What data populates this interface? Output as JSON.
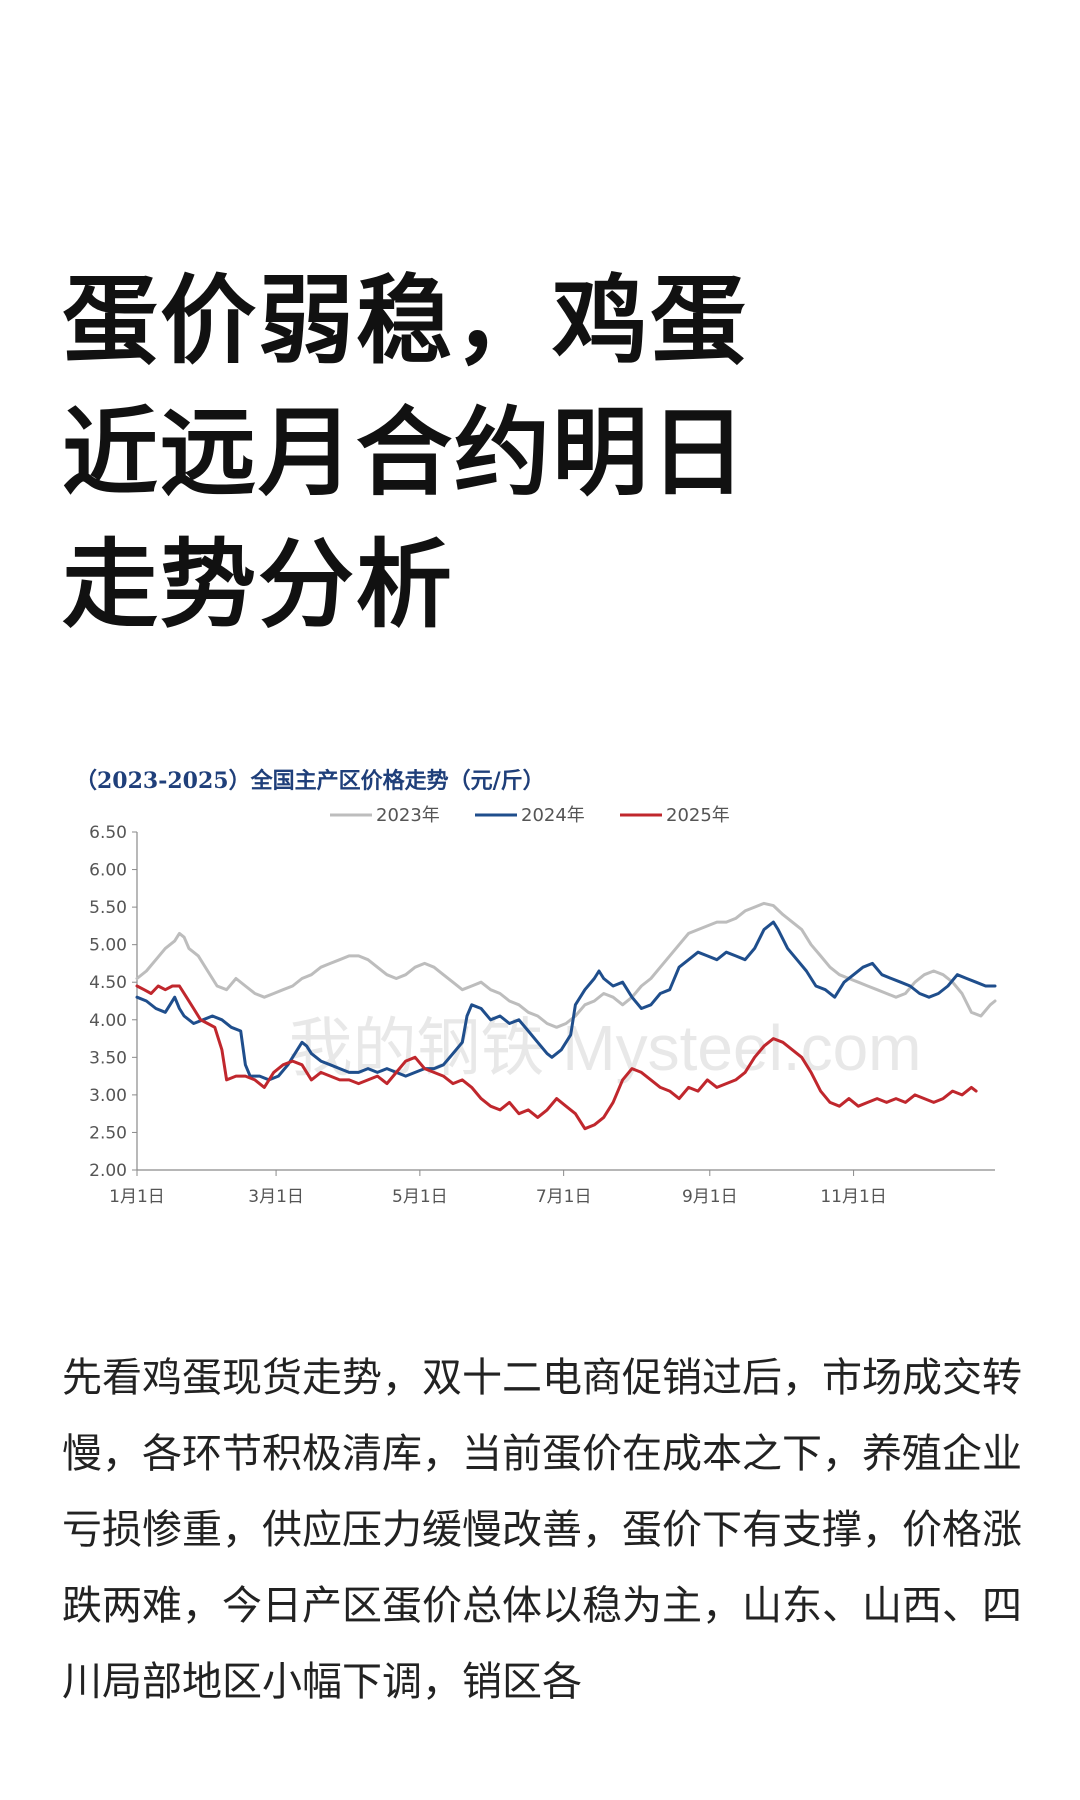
{
  "article": {
    "title": "蛋价弱稳，鸡蛋近远月合约明日走势分析",
    "body": "先看鸡蛋现货走势，双十二电商促销过后，市场成交转慢，各环节积极清库，当前蛋价在成本之下，养殖企业亏损惨重，供应压力缓慢改善，蛋价下有支撑，价格涨跌两难，今日产区蛋价总体以稳为主，山东、山西、四川局部地区小幅下调，销区各"
  },
  "chart_data": {
    "type": "line",
    "title": "（2023-2025）全国主产区价格走势（元/斤）",
    "watermark": "我的钢铁 Mysteel.com",
    "x_ticks": [
      {
        "label": "1月1日",
        "day": 0
      },
      {
        "label": "3月1日",
        "day": 59
      },
      {
        "label": "5月1日",
        "day": 120
      },
      {
        "label": "7月1日",
        "day": 181
      },
      {
        "label": "9月1日",
        "day": 243
      },
      {
        "label": "11月1日",
        "day": 304
      }
    ],
    "x_range_days": [
      0,
      364
    ],
    "y_ticks": [
      "2.00",
      "2.50",
      "3.00",
      "3.50",
      "4.00",
      "4.50",
      "5.00",
      "5.50",
      "6.00",
      "6.50"
    ],
    "ylim": [
      2.0,
      6.5
    ],
    "legend_position": "top-center",
    "grid": false,
    "series": [
      {
        "name": "2023年",
        "color": "#bdbdbd",
        "points": [
          [
            0,
            4.55
          ],
          [
            4,
            4.65
          ],
          [
            8,
            4.8
          ],
          [
            12,
            4.95
          ],
          [
            16,
            5.05
          ],
          [
            18,
            5.15
          ],
          [
            20,
            5.1
          ],
          [
            22,
            4.95
          ],
          [
            26,
            4.85
          ],
          [
            30,
            4.65
          ],
          [
            34,
            4.45
          ],
          [
            38,
            4.4
          ],
          [
            42,
            4.55
          ],
          [
            46,
            4.45
          ],
          [
            50,
            4.35
          ],
          [
            54,
            4.3
          ],
          [
            58,
            4.35
          ],
          [
            62,
            4.4
          ],
          [
            66,
            4.45
          ],
          [
            70,
            4.55
          ],
          [
            74,
            4.6
          ],
          [
            78,
            4.7
          ],
          [
            82,
            4.75
          ],
          [
            86,
            4.8
          ],
          [
            90,
            4.85
          ],
          [
            94,
            4.85
          ],
          [
            98,
            4.8
          ],
          [
            102,
            4.7
          ],
          [
            106,
            4.6
          ],
          [
            110,
            4.55
          ],
          [
            114,
            4.6
          ],
          [
            118,
            4.7
          ],
          [
            122,
            4.75
          ],
          [
            126,
            4.7
          ],
          [
            130,
            4.6
          ],
          [
            134,
            4.5
          ],
          [
            138,
            4.4
          ],
          [
            142,
            4.45
          ],
          [
            146,
            4.5
          ],
          [
            150,
            4.4
          ],
          [
            154,
            4.35
          ],
          [
            158,
            4.25
          ],
          [
            162,
            4.2
          ],
          [
            166,
            4.1
          ],
          [
            170,
            4.05
          ],
          [
            174,
            3.95
          ],
          [
            178,
            3.9
          ],
          [
            182,
            3.95
          ],
          [
            186,
            4.05
          ],
          [
            190,
            4.2
          ],
          [
            194,
            4.25
          ],
          [
            198,
            4.35
          ],
          [
            202,
            4.3
          ],
          [
            206,
            4.2
          ],
          [
            210,
            4.3
          ],
          [
            214,
            4.45
          ],
          [
            218,
            4.55
          ],
          [
            222,
            4.7
          ],
          [
            226,
            4.85
          ],
          [
            230,
            5.0
          ],
          [
            234,
            5.15
          ],
          [
            238,
            5.2
          ],
          [
            242,
            5.25
          ],
          [
            246,
            5.3
          ],
          [
            250,
            5.3
          ],
          [
            254,
            5.35
          ],
          [
            258,
            5.45
          ],
          [
            262,
            5.5
          ],
          [
            266,
            5.55
          ],
          [
            270,
            5.52
          ],
          [
            274,
            5.4
          ],
          [
            278,
            5.3
          ],
          [
            282,
            5.2
          ],
          [
            286,
            5.0
          ],
          [
            290,
            4.85
          ],
          [
            294,
            4.7
          ],
          [
            298,
            4.6
          ],
          [
            302,
            4.55
          ],
          [
            306,
            4.5
          ],
          [
            310,
            4.45
          ],
          [
            314,
            4.4
          ],
          [
            318,
            4.35
          ],
          [
            322,
            4.3
          ],
          [
            326,
            4.35
          ],
          [
            330,
            4.5
          ],
          [
            334,
            4.6
          ],
          [
            338,
            4.65
          ],
          [
            342,
            4.6
          ],
          [
            346,
            4.5
          ],
          [
            350,
            4.35
          ],
          [
            354,
            4.1
          ],
          [
            358,
            4.05
          ],
          [
            362,
            4.2
          ],
          [
            364,
            4.25
          ]
        ]
      },
      {
        "name": "2024年",
        "color": "#1f4e8c",
        "points": [
          [
            0,
            4.3
          ],
          [
            4,
            4.25
          ],
          [
            8,
            4.15
          ],
          [
            12,
            4.1
          ],
          [
            14,
            4.2
          ],
          [
            16,
            4.3
          ],
          [
            18,
            4.15
          ],
          [
            20,
            4.05
          ],
          [
            24,
            3.95
          ],
          [
            28,
            4.0
          ],
          [
            32,
            4.05
          ],
          [
            36,
            4.0
          ],
          [
            40,
            3.9
          ],
          [
            44,
            3.85
          ],
          [
            46,
            3.4
          ],
          [
            48,
            3.25
          ],
          [
            52,
            3.25
          ],
          [
            56,
            3.2
          ],
          [
            60,
            3.25
          ],
          [
            64,
            3.4
          ],
          [
            66,
            3.5
          ],
          [
            68,
            3.6
          ],
          [
            70,
            3.7
          ],
          [
            72,
            3.65
          ],
          [
            74,
            3.55
          ],
          [
            78,
            3.45
          ],
          [
            82,
            3.4
          ],
          [
            86,
            3.35
          ],
          [
            90,
            3.3
          ],
          [
            94,
            3.3
          ],
          [
            98,
            3.35
          ],
          [
            102,
            3.3
          ],
          [
            106,
            3.35
          ],
          [
            110,
            3.3
          ],
          [
            114,
            3.25
          ],
          [
            118,
            3.3
          ],
          [
            122,
            3.35
          ],
          [
            126,
            3.35
          ],
          [
            130,
            3.4
          ],
          [
            134,
            3.55
          ],
          [
            138,
            3.7
          ],
          [
            140,
            4.05
          ],
          [
            142,
            4.2
          ],
          [
            146,
            4.15
          ],
          [
            150,
            4.0
          ],
          [
            154,
            4.05
          ],
          [
            158,
            3.95
          ],
          [
            162,
            4.0
          ],
          [
            166,
            3.85
          ],
          [
            170,
            3.7
          ],
          [
            174,
            3.55
          ],
          [
            176,
            3.5
          ],
          [
            180,
            3.6
          ],
          [
            184,
            3.8
          ],
          [
            186,
            4.2
          ],
          [
            190,
            4.4
          ],
          [
            194,
            4.55
          ],
          [
            196,
            4.65
          ],
          [
            198,
            4.55
          ],
          [
            202,
            4.45
          ],
          [
            206,
            4.5
          ],
          [
            210,
            4.3
          ],
          [
            214,
            4.15
          ],
          [
            218,
            4.2
          ],
          [
            222,
            4.35
          ],
          [
            226,
            4.4
          ],
          [
            230,
            4.7
          ],
          [
            234,
            4.8
          ],
          [
            238,
            4.9
          ],
          [
            242,
            4.85
          ],
          [
            246,
            4.8
          ],
          [
            250,
            4.9
          ],
          [
            254,
            4.85
          ],
          [
            258,
            4.8
          ],
          [
            262,
            4.95
          ],
          [
            266,
            5.2
          ],
          [
            270,
            5.3
          ],
          [
            272,
            5.2
          ],
          [
            276,
            4.95
          ],
          [
            280,
            4.8
          ],
          [
            284,
            4.65
          ],
          [
            288,
            4.45
          ],
          [
            292,
            4.4
          ],
          [
            296,
            4.3
          ],
          [
            300,
            4.5
          ],
          [
            304,
            4.6
          ],
          [
            308,
            4.7
          ],
          [
            312,
            4.75
          ],
          [
            316,
            4.6
          ],
          [
            320,
            4.55
          ],
          [
            324,
            4.5
          ],
          [
            328,
            4.45
          ],
          [
            332,
            4.35
          ],
          [
            336,
            4.3
          ],
          [
            340,
            4.35
          ],
          [
            344,
            4.45
          ],
          [
            348,
            4.6
          ],
          [
            352,
            4.55
          ],
          [
            356,
            4.5
          ],
          [
            360,
            4.45
          ],
          [
            364,
            4.45
          ]
        ]
      },
      {
        "name": "2025年",
        "color": "#c0272d",
        "points": [
          [
            0,
            4.45
          ],
          [
            3,
            4.4
          ],
          [
            6,
            4.35
          ],
          [
            9,
            4.45
          ],
          [
            12,
            4.4
          ],
          [
            15,
            4.45
          ],
          [
            18,
            4.45
          ],
          [
            21,
            4.3
          ],
          [
            24,
            4.15
          ],
          [
            27,
            4.0
          ],
          [
            30,
            3.95
          ],
          [
            33,
            3.9
          ],
          [
            36,
            3.6
          ],
          [
            38,
            3.2
          ],
          [
            42,
            3.25
          ],
          [
            46,
            3.25
          ],
          [
            50,
            3.2
          ],
          [
            54,
            3.1
          ],
          [
            58,
            3.3
          ],
          [
            62,
            3.4
          ],
          [
            66,
            3.45
          ],
          [
            70,
            3.4
          ],
          [
            74,
            3.2
          ],
          [
            78,
            3.3
          ],
          [
            82,
            3.25
          ],
          [
            86,
            3.2
          ],
          [
            90,
            3.2
          ],
          [
            94,
            3.15
          ],
          [
            98,
            3.2
          ],
          [
            102,
            3.25
          ],
          [
            106,
            3.15
          ],
          [
            110,
            3.3
          ],
          [
            114,
            3.45
          ],
          [
            118,
            3.5
          ],
          [
            122,
            3.35
          ],
          [
            126,
            3.3
          ],
          [
            130,
            3.25
          ],
          [
            134,
            3.15
          ],
          [
            138,
            3.2
          ],
          [
            142,
            3.1
          ],
          [
            146,
            2.95
          ],
          [
            150,
            2.85
          ],
          [
            154,
            2.8
          ],
          [
            158,
            2.9
          ],
          [
            162,
            2.75
          ],
          [
            166,
            2.8
          ],
          [
            170,
            2.7
          ],
          [
            174,
            2.8
          ],
          [
            178,
            2.95
          ],
          [
            182,
            2.85
          ],
          [
            186,
            2.75
          ],
          [
            190,
            2.55
          ],
          [
            194,
            2.6
          ],
          [
            198,
            2.7
          ],
          [
            202,
            2.9
          ],
          [
            206,
            3.2
          ],
          [
            210,
            3.35
          ],
          [
            214,
            3.3
          ],
          [
            218,
            3.2
          ],
          [
            222,
            3.1
          ],
          [
            226,
            3.05
          ],
          [
            230,
            2.95
          ],
          [
            234,
            3.1
          ],
          [
            238,
            3.05
          ],
          [
            242,
            3.2
          ],
          [
            246,
            3.1
          ],
          [
            250,
            3.15
          ],
          [
            254,
            3.2
          ],
          [
            258,
            3.3
          ],
          [
            262,
            3.5
          ],
          [
            266,
            3.65
          ],
          [
            270,
            3.75
          ],
          [
            274,
            3.7
          ],
          [
            278,
            3.6
          ],
          [
            282,
            3.5
          ],
          [
            286,
            3.3
          ],
          [
            290,
            3.05
          ],
          [
            294,
            2.9
          ],
          [
            298,
            2.85
          ],
          [
            302,
            2.95
          ],
          [
            306,
            2.85
          ],
          [
            310,
            2.9
          ],
          [
            314,
            2.95
          ],
          [
            318,
            2.9
          ],
          [
            322,
            2.95
          ],
          [
            326,
            2.9
          ],
          [
            330,
            3.0
          ],
          [
            334,
            2.95
          ],
          [
            338,
            2.9
          ],
          [
            342,
            2.95
          ],
          [
            346,
            3.05
          ],
          [
            350,
            3.0
          ],
          [
            354,
            3.1
          ],
          [
            356,
            3.05
          ]
        ]
      }
    ]
  }
}
